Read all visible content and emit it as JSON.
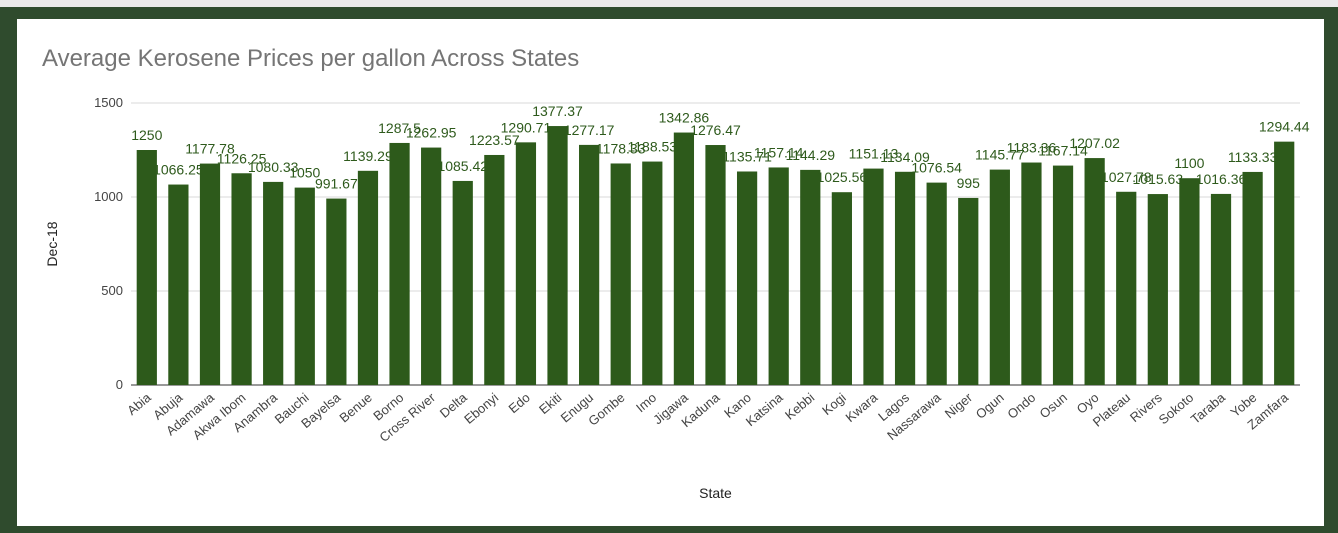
{
  "chart_data": {
    "type": "bar",
    "title": "Average Kerosene Prices per gallon Across States",
    "xlabel": "State",
    "ylabel": "Dec-18",
    "ylim": [
      0,
      1500
    ],
    "yticks": [
      0,
      500,
      1000,
      1500
    ],
    "grid": true,
    "bar_color": "#2d5a1b",
    "categories": [
      "Abia",
      "Abuja",
      "Adamawa",
      "Akwa Ibom",
      "Anambra",
      "Bauchi",
      "Bayelsa",
      "Benue",
      "Borno",
      "Cross River",
      "Delta",
      "Ebonyi",
      "Edo",
      "Ekiti",
      "Enugu",
      "Gombe",
      "Imo",
      "Jigawa",
      "Kaduna",
      "Kano",
      "Katsina",
      "Kebbi",
      "Kogi",
      "Kwara",
      "Lagos",
      "Nassarawa",
      "Niger",
      "Ogun",
      "Ondo",
      "Osun",
      "Oyo",
      "Plateau",
      "Rivers",
      "Sokoto",
      "Taraba",
      "Yobe",
      "Zamfara"
    ],
    "values": [
      1250,
      1066.25,
      1177.78,
      1126.25,
      1080.33,
      1050,
      991.67,
      1139.29,
      1287.5,
      1262.95,
      1085.42,
      1223.57,
      1290.71,
      1377.37,
      1277.17,
      1178.33,
      1188.53,
      1342.86,
      1276.47,
      1135.71,
      1157.14,
      1144.29,
      1025.56,
      1151.13,
      1134.09,
      1076.54,
      995,
      1145.77,
      1183.36,
      1167.14,
      1207.02,
      1027.78,
      1015.63,
      1100,
      1016.36,
      1133.33,
      1294.44
    ],
    "labels": [
      "1250",
      "1066.25",
      "1177.78",
      "1126.25",
      "1080.33",
      "1050",
      "991.67",
      "1139.29",
      "1287.5",
      "1262.95",
      "1085.42",
      "1223.57",
      "1290.71",
      "1377.37",
      "1277.17",
      "1178.33",
      "1188.53",
      "1342.86",
      "1276.47",
      "1135.71",
      "1157.14",
      "1144.29",
      "1025.56",
      "1151.13",
      "1134.09",
      "1076.54",
      "995",
      "1145.77",
      "1183.36",
      "1167.14",
      "1207.02",
      "1027.78",
      "1015.63",
      "1100",
      "1016.36",
      "1133.33",
      "1294.44"
    ]
  }
}
